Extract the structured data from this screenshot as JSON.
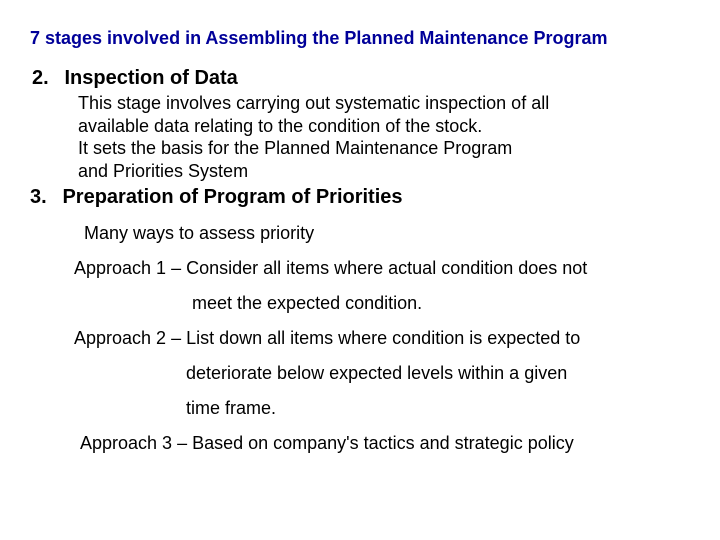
{
  "title": "7 stages involved in Assembling the Planned Maintenance Program",
  "colors": {
    "title": "#000099",
    "text": "#000000",
    "background": "#ffffff"
  },
  "typography": {
    "title_fontsize": 18,
    "heading_fontsize": 20,
    "body_fontsize": 18,
    "font_family": "Arial"
  },
  "stage2": {
    "num": "2.",
    "heading": "Inspection of Data",
    "body_line1": "This stage involves carrying out systematic inspection of all",
    "body_line2": "available data relating to the condition of the stock.",
    "body_line3": "It sets the basis for the Planned Maintenance Program",
    "body_line4": "and Priorities System"
  },
  "stage3": {
    "num": "3.",
    "heading": "Preparation of Program of Priorities",
    "intro": "Many ways to assess priority",
    "approach1_l1": "Approach 1 – Consider all items where actual condition does not",
    "approach1_l2": "meet the expected condition.",
    "approach2_l1": "Approach 2 – List down all items where condition is expected to",
    "approach2_l2": "deteriorate below expected levels within a given",
    "approach2_l3": "time frame.",
    "approach3": "Approach 3 – Based on company's tactics and strategic policy"
  }
}
